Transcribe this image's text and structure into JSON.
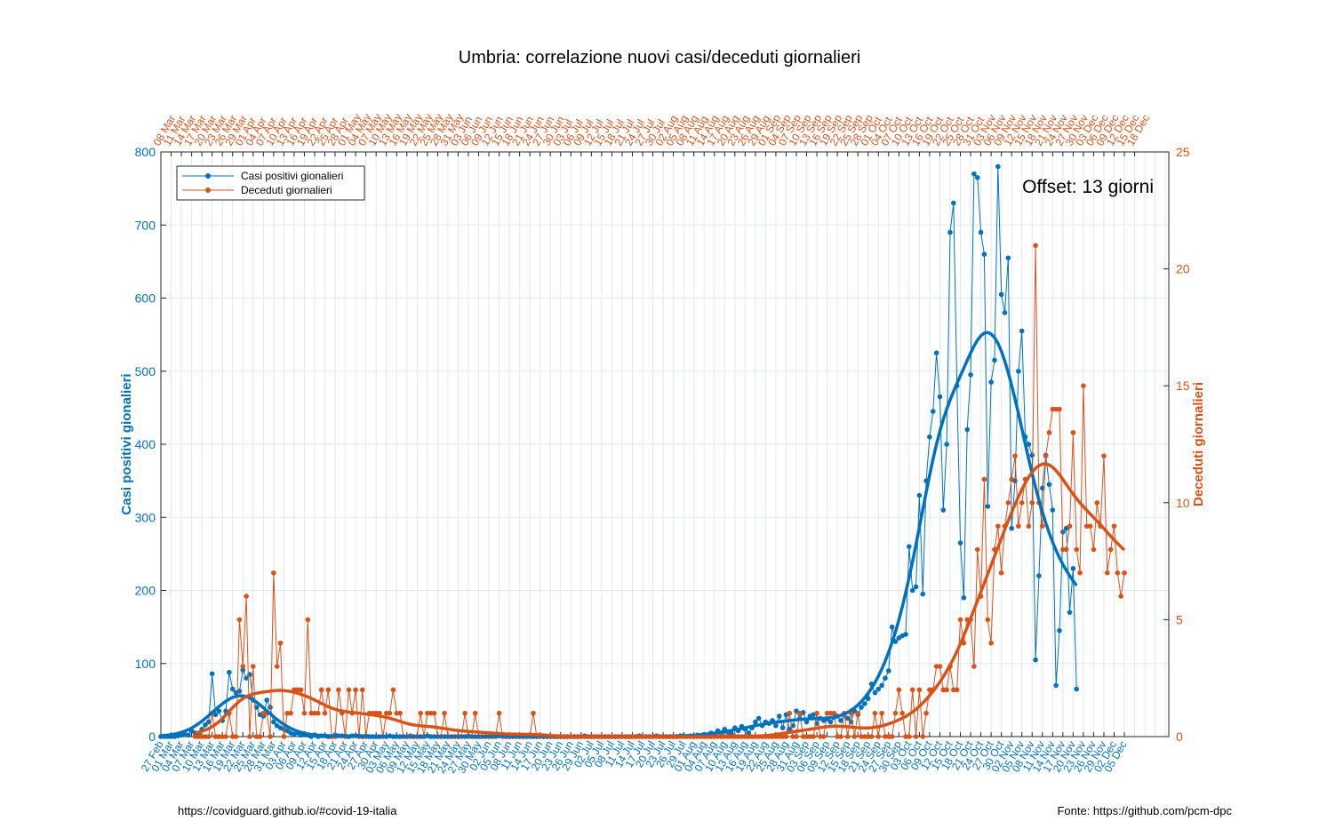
{
  "chart_data": {
    "type": "line",
    "title": "Umbria: correlazione nuovi casi/deceduti giornalieri",
    "ylabel_left": "Casi positivi gionalieri",
    "ylabel_right": "Deceduti giornalieri",
    "ylim_left": [
      0,
      800
    ],
    "ylim_right": [
      0,
      25
    ],
    "yticks_left": [
      0,
      100,
      200,
      300,
      400,
      500,
      600,
      700,
      800
    ],
    "yticks_right": [
      0,
      5,
      10,
      15,
      20,
      25
    ],
    "grid": true,
    "legend_placement": "top-left",
    "annotation": "Offset: 13 giorni",
    "footer_left": "https://covidguard.github.io/#covid-19-italia",
    "footer_right": "Fonte: https://github.com/pcm-dpc",
    "colors": {
      "cases": "#0072BD",
      "deaths": "#D95319"
    },
    "x_bottom_labels": [
      "27 Feb",
      "01 Mar",
      "04 Mar",
      "07 Mar",
      "10 Mar",
      "13 Mar",
      "16 Mar",
      "19 Mar",
      "22 Mar",
      "25 Mar",
      "28 Mar",
      "31 Mar",
      "03 Apr",
      "06 Apr",
      "09 Apr",
      "12 Apr",
      "15 Apr",
      "18 Apr",
      "21 Apr",
      "24 Apr",
      "27 Apr",
      "30 Apr",
      "03 May",
      "06 May",
      "09 May",
      "12 May",
      "15 May",
      "18 May",
      "21 May",
      "24 May",
      "27 May",
      "30 May",
      "02 Jun",
      "05 Jun",
      "08 Jun",
      "11 Jun",
      "14 Jun",
      "17 Jun",
      "20 Jun",
      "23 Jun",
      "26 Jun",
      "29 Jun",
      "02 Jul",
      "05 Jul",
      "08 Jul",
      "11 Jul",
      "14 Jul",
      "17 Jul",
      "20 Jul",
      "23 Jul",
      "26 Jul",
      "29 Jul",
      "01 Aug",
      "04 Aug",
      "07 Aug",
      "10 Aug",
      "13 Aug",
      "16 Aug",
      "19 Aug",
      "22 Aug",
      "25 Aug",
      "28 Aug",
      "31 Aug",
      "03 Sep",
      "06 Sep",
      "09 Sep",
      "12 Sep",
      "15 Sep",
      "18 Sep",
      "21 Sep",
      "24 Sep",
      "27 Sep",
      "30 Sep",
      "03 Oct",
      "06 Oct",
      "09 Oct",
      "12 Oct",
      "15 Oct",
      "18 Oct",
      "21 Oct",
      "24 Oct",
      "27 Oct",
      "30 Oct",
      "02 Nov",
      "05 Nov",
      "08 Nov",
      "11 Nov",
      "14 Nov",
      "17 Nov",
      "20 Nov",
      "23 Nov",
      "26 Nov",
      "29 Nov",
      "02 Dec",
      "05 Dec"
    ],
    "x_top_labels": [
      "08 Mar",
      "11 Mar",
      "14 Mar",
      "17 Mar",
      "20 Mar",
      "23 Mar",
      "26 Mar",
      "29 Mar",
      "01 Apr",
      "04 Apr",
      "07 Apr",
      "10 Apr",
      "13 Apr",
      "16 Apr",
      "19 Apr",
      "22 Apr",
      "25 Apr",
      "28 Apr",
      "01 May",
      "04 May",
      "07 May",
      "10 May",
      "13 May",
      "16 May",
      "19 May",
      "22 May",
      "25 May",
      "28 May",
      "31 May",
      "03 Jun",
      "06 Jun",
      "09 Jun",
      "12 Jun",
      "15 Jun",
      "18 Jun",
      "21 Jun",
      "24 Jun",
      "27 Jun",
      "30 Jun",
      "03 Jul",
      "06 Jul",
      "09 Jul",
      "12 Jul",
      "15 Jul",
      "18 Jul",
      "21 Jul",
      "24 Jul",
      "27 Jul",
      "30 Jul",
      "02 Aug",
      "05 Aug",
      "08 Aug",
      "11 Aug",
      "14 Aug",
      "17 Aug",
      "20 Aug",
      "23 Aug",
      "26 Aug",
      "29 Aug",
      "01 Sep",
      "04 Sep",
      "07 Sep",
      "10 Sep",
      "13 Sep",
      "16 Sep",
      "19 Sep",
      "22 Sep",
      "25 Sep",
      "28 Sep",
      "01 Oct",
      "04 Oct",
      "07 Oct",
      "10 Oct",
      "13 Oct",
      "16 Oct",
      "19 Oct",
      "22 Oct",
      "25 Oct",
      "28 Oct",
      "31 Oct",
      "03 Nov",
      "06 Nov",
      "09 Nov",
      "12 Nov",
      "15 Nov",
      "18 Nov",
      "21 Nov",
      "24 Nov",
      "27 Nov",
      "30 Nov",
      "03 Dec",
      "06 Dec",
      "09 Dec",
      "12 Dec",
      "15 Dec",
      "18 Dec"
    ],
    "series": [
      {
        "name": "Casi positivi gionalieri",
        "axis": "left",
        "x_start": "2020-02-27",
        "values": [
          0,
          0,
          0,
          0,
          0,
          1,
          2,
          3,
          2,
          8,
          5,
          3,
          10,
          16,
          20,
          86,
          30,
          35,
          22,
          35,
          88,
          65,
          60,
          62,
          91,
          80,
          85,
          50,
          40,
          30,
          28,
          50,
          40,
          20,
          15,
          12,
          10,
          8,
          5,
          3,
          5,
          2,
          4,
          2,
          0,
          2,
          0,
          1,
          1,
          0,
          0,
          2,
          1,
          1,
          1,
          0,
          1,
          1,
          1,
          0,
          1,
          0,
          0,
          0,
          0,
          0,
          0,
          1,
          0,
          0,
          0,
          0,
          0,
          1,
          0,
          0,
          0,
          0,
          1,
          0,
          0,
          0,
          0,
          0,
          0,
          0,
          0,
          0,
          0,
          0,
          1,
          0,
          0,
          0,
          0,
          0,
          0,
          0,
          1,
          1,
          1,
          0,
          0,
          0,
          0,
          0,
          0,
          0,
          0,
          0,
          0,
          1,
          0,
          0,
          0,
          0,
          0,
          0,
          0,
          0,
          0,
          0,
          0,
          0,
          1,
          0,
          0,
          0,
          0,
          0,
          0,
          0,
          0,
          0,
          0,
          0,
          0,
          0,
          0,
          0,
          1,
          0,
          0,
          0,
          0,
          1,
          0,
          0,
          0,
          0,
          0,
          0,
          1,
          1,
          0,
          1,
          0,
          2,
          1,
          3,
          2,
          5,
          2,
          8,
          5,
          10,
          6,
          3,
          12,
          8,
          14,
          10,
          5,
          12,
          20,
          25,
          15,
          20,
          18,
          22,
          15,
          28,
          12,
          30,
          10,
          15,
          35,
          25,
          33,
          20,
          28,
          30,
          18,
          25,
          22,
          24,
          20,
          26,
          28,
          22,
          30,
          25,
          20,
          35,
          30,
          40,
          45,
          52,
          72,
          60,
          65,
          70,
          80,
          90,
          150,
          130,
          135,
          138,
          140,
          260,
          200,
          205,
          330,
          195,
          350,
          410,
          445,
          525,
          465,
          310,
          400,
          690,
          730,
          480,
          265,
          190,
          420,
          495,
          770,
          765,
          690,
          660,
          315,
          485,
          515,
          780,
          605,
          580,
          655,
          285,
          350,
          500,
          555,
          410,
          400,
          385,
          105,
          220,
          340,
          385,
          345,
          310,
          70,
          145,
          280,
          285,
          170,
          230,
          65
        ]
      },
      {
        "name": "Deceduti giornalieri",
        "axis": "right",
        "x_start": "2020-03-08",
        "values": [
          0,
          0,
          0,
          0,
          0,
          1,
          0,
          0,
          0,
          0,
          1,
          0,
          0,
          5,
          3,
          6,
          0,
          3,
          0,
          0,
          1,
          1,
          0,
          7,
          3,
          4,
          0,
          1,
          1,
          2,
          2,
          2,
          1,
          5,
          1,
          1,
          1,
          2,
          1,
          2,
          0,
          0,
          2,
          1,
          0,
          2,
          1,
          2,
          0,
          2,
          0,
          1,
          1,
          1,
          1,
          0,
          1,
          1,
          2,
          1,
          1,
          0,
          0,
          0,
          0,
          0,
          1,
          0,
          1,
          1,
          1,
          0,
          0,
          1,
          0,
          0,
          0,
          0,
          0,
          1,
          0,
          0,
          1,
          0,
          0,
          0,
          0,
          0,
          0,
          1,
          0,
          0,
          0,
          0,
          0,
          0,
          0,
          0,
          0,
          1,
          0,
          0,
          0,
          0,
          0,
          0,
          0,
          0,
          0,
          0,
          0,
          0,
          0,
          0,
          0,
          0,
          0,
          0,
          0,
          0,
          0,
          0,
          0,
          0,
          0,
          0,
          0,
          0,
          0,
          0,
          0,
          0,
          0,
          0,
          0,
          0,
          0,
          0,
          0,
          0,
          0,
          0,
          0,
          0,
          0,
          0,
          0,
          0,
          0,
          0,
          0,
          0,
          0,
          0,
          0,
          0,
          0,
          0,
          0,
          0,
          0,
          0,
          0,
          0,
          0,
          0,
          0,
          0,
          0,
          0,
          0,
          0,
          0,
          0,
          1,
          0,
          0,
          1,
          0,
          0,
          0,
          0,
          1,
          0,
          0,
          1,
          1,
          1,
          0,
          0,
          1,
          0,
          1,
          0,
          1,
          0,
          0,
          0,
          0,
          1,
          0,
          1,
          0,
          0,
          0,
          1,
          2,
          1,
          0,
          0,
          2,
          0,
          2,
          0,
          1,
          2,
          2,
          3,
          3,
          2,
          2,
          3,
          2,
          2,
          5,
          4,
          5,
          5,
          3,
          8,
          6,
          11,
          5,
          4,
          8,
          9,
          7,
          9,
          10,
          11,
          12,
          9,
          10,
          11,
          9,
          10,
          21,
          10,
          9,
          12,
          13,
          14,
          14,
          14,
          8,
          8,
          9,
          13,
          8,
          7,
          15,
          9,
          9,
          8,
          10,
          9,
          12,
          7,
          8,
          9,
          7,
          6,
          7
        ]
      }
    ]
  }
}
